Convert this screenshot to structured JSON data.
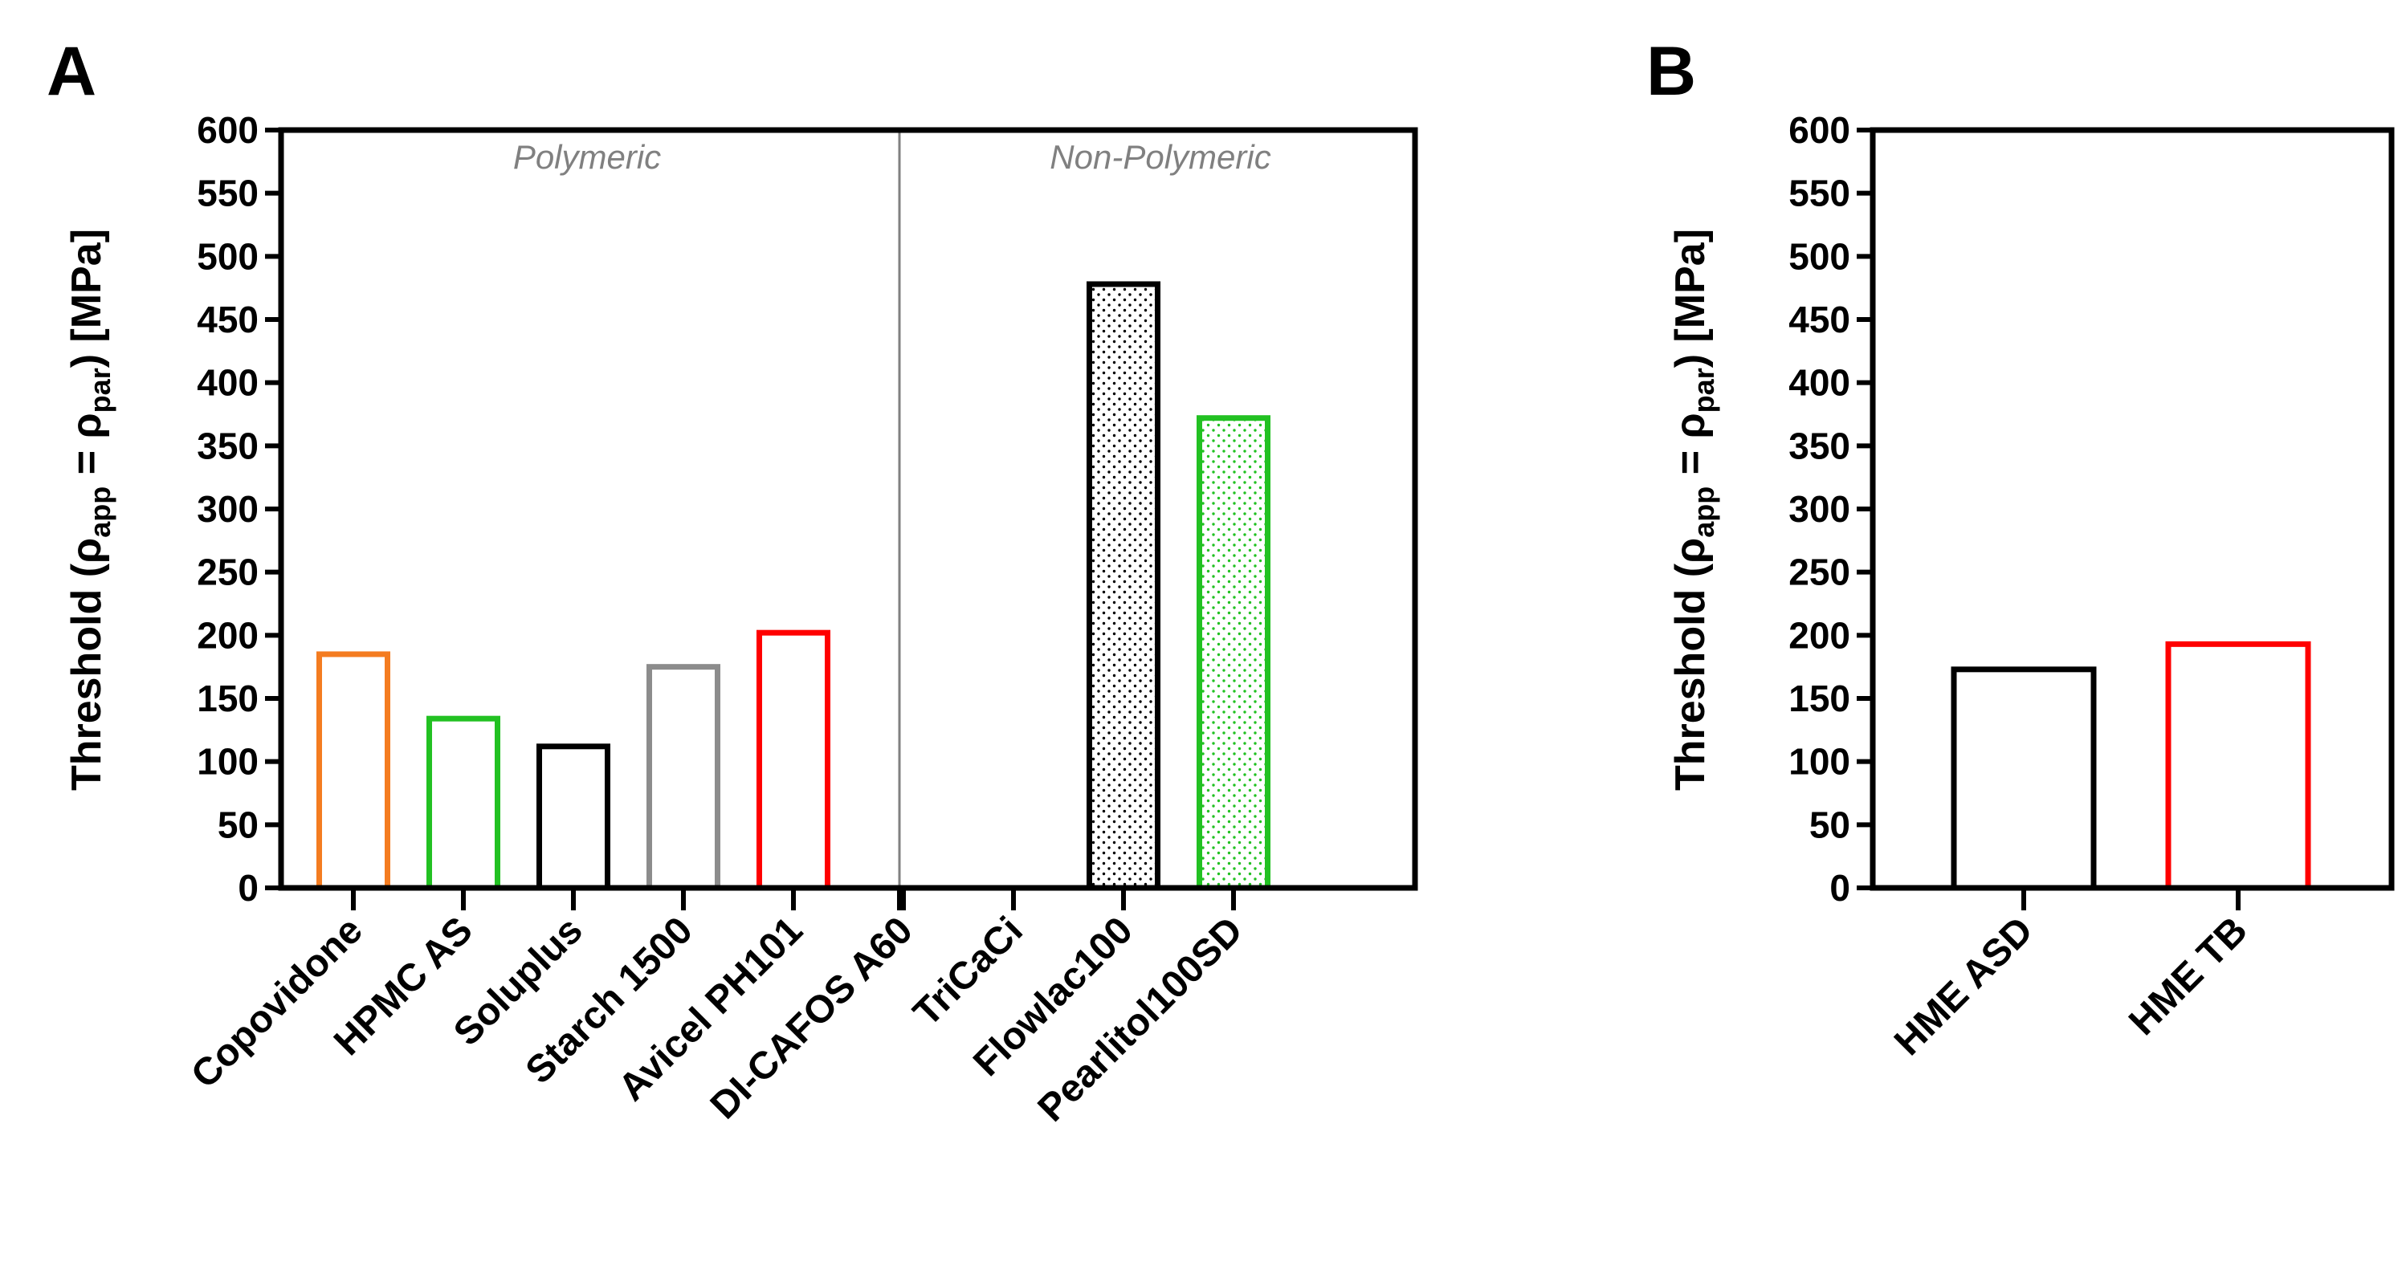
{
  "chart_data": [
    {
      "panel": "A",
      "type": "bar",
      "ylabel": {
        "prefix": "Threshold (",
        "rho1": "ρ",
        "sub1": "app",
        "eq": " = ",
        "rho2": "ρ",
        "sub2": "par",
        "suffix": ") [MPa]"
      },
      "ylim": [
        0,
        600
      ],
      "yticks": [
        0,
        50,
        100,
        150,
        200,
        250,
        300,
        350,
        400,
        450,
        500,
        550,
        600
      ],
      "groups": [
        {
          "label": "Polymeric",
          "categories": [
            "Copovidone",
            "HPMC AS",
            "Soluplus",
            "Starch 1500",
            "Avicel PH101"
          ]
        },
        {
          "label": "Non-Polymeric",
          "categories": [
            "DI-CAFOS A60",
            "TriCaCi",
            "Flowlac100",
            "Pearlitol100SD"
          ]
        }
      ],
      "categories": [
        "Copovidone",
        "HPMC AS",
        "Soluplus",
        "Starch 1500",
        "Avicel PH101",
        "DI-CAFOS A60",
        "TriCaCi",
        "Flowlac100",
        "Pearlitol100SD"
      ],
      "values": [
        185,
        134,
        112,
        175,
        202,
        0,
        0,
        478,
        372
      ],
      "colors": [
        "#f47c20",
        "#22c122",
        "#000000",
        "#8c8c8c",
        "#ff0000",
        "#000000",
        "#000000",
        "#000000",
        "#22c122"
      ],
      "patterns": [
        "none",
        "none",
        "none",
        "none",
        "none",
        "none",
        "none",
        "dots",
        "dots"
      ]
    },
    {
      "panel": "B",
      "type": "bar",
      "ylabel": {
        "prefix": "Threshold (",
        "rho1": "ρ",
        "sub1": "app",
        "eq": " = ",
        "rho2": "ρ",
        "sub2": "par",
        "suffix": ") [MPa]"
      },
      "ylim": [
        0,
        600
      ],
      "yticks": [
        0,
        50,
        100,
        150,
        200,
        250,
        300,
        350,
        400,
        450,
        500,
        550,
        600
      ],
      "categories": [
        "HME ASD",
        "HME TB"
      ],
      "values": [
        173,
        193
      ],
      "colors": [
        "#000000",
        "#ff0000"
      ],
      "patterns": [
        "none",
        "none"
      ]
    }
  ]
}
